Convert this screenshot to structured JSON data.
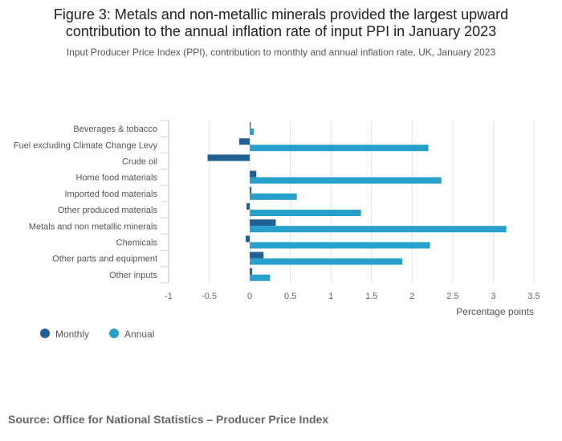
{
  "chart_data": {
    "type": "bar",
    "orientation": "horizontal",
    "title": "Figure 3: Metals and non-metallic minerals provided the largest upward contribution to the annual inflation rate of input PPI in January 2023",
    "title_lines": [
      "Figure 3: Metals and non-metallic minerals provided the largest upward",
      "contribution to the annual inflation rate of input PPI in January 2023"
    ],
    "subtitle": "Input Producer Price Index (PPI), contribution to monthly and annual inflation rate, UK, January 2023",
    "xlabel": "Percentage points",
    "ylabel": "",
    "xlim": [
      -1,
      3.5
    ],
    "xticks": [
      -1,
      -0.5,
      0,
      0.5,
      1,
      1.5,
      2,
      2.5,
      3,
      3.5
    ],
    "grid": true,
    "legend_position": "bottom-left",
    "categories": [
      "Beverages & tobacco",
      "Fuel excluding Climate Change Levy",
      "Crude oil",
      "Home food materials",
      "Imported food materials",
      "Other produced materials",
      "Metals and non metallic minerals",
      "Chemicals",
      "Other parts and equipment",
      "Other inputs"
    ],
    "series": [
      {
        "name": "Monthly",
        "color": "#206095",
        "values": [
          0.01,
          -0.13,
          -0.52,
          0.08,
          0.02,
          -0.04,
          0.32,
          -0.05,
          0.17,
          0.03
        ]
      },
      {
        "name": "Annual",
        "color": "#27a0cc",
        "values": [
          0.05,
          2.2,
          0.0,
          2.36,
          0.58,
          1.37,
          3.16,
          2.22,
          1.88,
          0.25
        ]
      }
    ]
  },
  "source": "Source: Office for National Statistics – Producer Price Index"
}
